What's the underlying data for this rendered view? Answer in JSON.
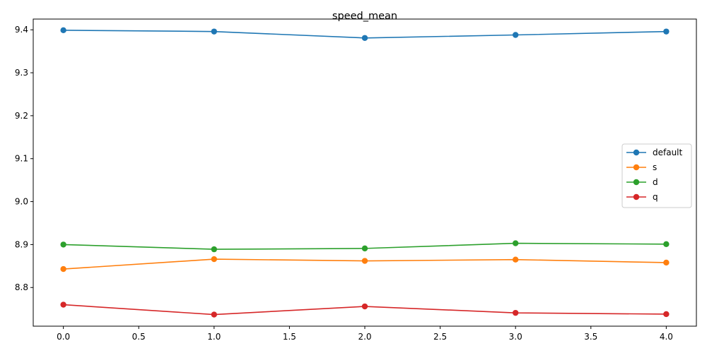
{
  "chart_data": {
    "type": "line",
    "title": "speed_mean",
    "xlabel": "",
    "ylabel": "",
    "x": [
      0,
      1,
      2,
      3,
      4
    ],
    "xlim": [
      -0.2,
      4.2
    ],
    "ylim": [
      8.71,
      9.425
    ],
    "xticks": [
      "0.0",
      "0.5",
      "1.0",
      "1.5",
      "2.0",
      "2.5",
      "3.0",
      "3.5",
      "4.0"
    ],
    "xtick_values": [
      0,
      0.5,
      1,
      1.5,
      2,
      2.5,
      3,
      3.5,
      4
    ],
    "yticks": [
      "8.8",
      "8.9",
      "9.0",
      "9.1",
      "9.2",
      "9.3",
      "9.4"
    ],
    "ytick_values": [
      8.8,
      8.9,
      9.0,
      9.1,
      9.2,
      9.3,
      9.4
    ],
    "grid": false,
    "legend_position": "center-right",
    "marker": "circle",
    "series": [
      {
        "name": "default",
        "color": "#1f77b4",
        "values": [
          9.399,
          9.396,
          9.381,
          9.388,
          9.396
        ]
      },
      {
        "name": "s",
        "color": "#ff7f0e",
        "values": [
          8.843,
          8.866,
          8.862,
          8.865,
          8.858
        ]
      },
      {
        "name": "d",
        "color": "#2ca02c",
        "values": [
          8.9,
          8.889,
          8.891,
          8.903,
          8.901
        ]
      },
      {
        "name": "q",
        "color": "#d62728",
        "values": [
          8.76,
          8.737,
          8.756,
          8.741,
          8.738
        ]
      }
    ]
  }
}
